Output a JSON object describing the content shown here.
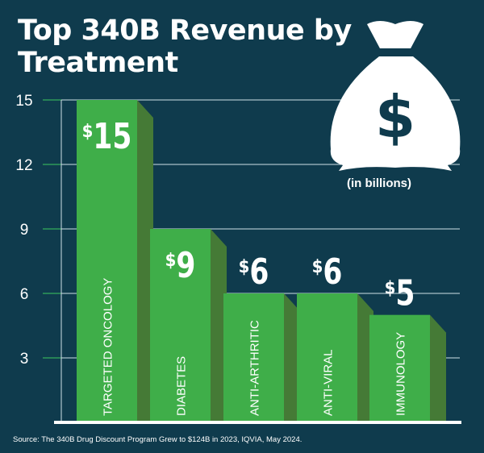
{
  "chart_data": {
    "type": "bar",
    "title": "Top 340B Revenue by Treatment",
    "subtitle": "(in billions)",
    "categories": [
      "TARGETED ONCOLOGY",
      "DIABETES",
      "ANTI-ARTHRITIC",
      "ANTI-VIRAL",
      "IMMUNOLOGY"
    ],
    "values": [
      15,
      9,
      6,
      6,
      5
    ],
    "data_labels": [
      "$15",
      "$9",
      "$6",
      "$6",
      "$5"
    ],
    "ylim": [
      0,
      15
    ],
    "yticks": [
      3,
      6,
      9,
      12,
      15
    ],
    "grid": true,
    "colors": {
      "background": "#0f3b4d",
      "bar": "#3fae49",
      "bar_side": "#457a36",
      "tick": "#2f9a5a"
    },
    "icon": "money-bag-icon",
    "source": "Source: The 340B Drug Discount Program Grew to $124B in 2023, IQVIA, May 2024."
  }
}
